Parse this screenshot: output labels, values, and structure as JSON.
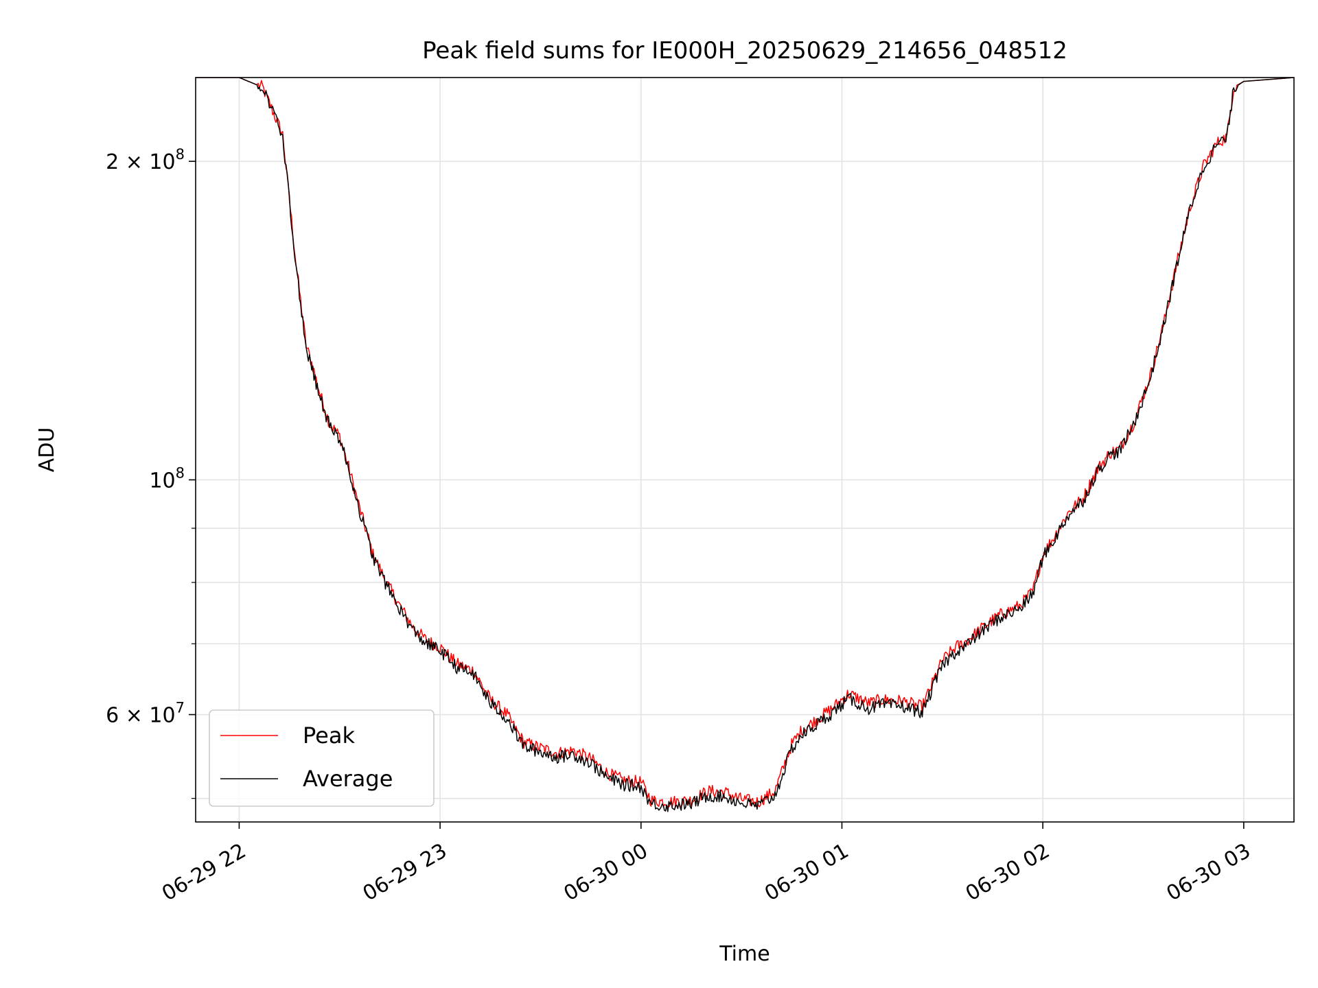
{
  "chart_data": {
    "type": "line",
    "title": "Peak field sums for IE000H_20250629_214656_048512",
    "xlabel": "Time",
    "ylabel": "ADU",
    "x_scale": "time",
    "y_scale": "log",
    "xlim": [
      "2025-06-29 21:47",
      "2025-06-30 03:15"
    ],
    "ylim": [
      47500000,
      240000000
    ],
    "x_ticks": [
      {
        "value": "2025-06-29 22:00",
        "label": "06-29 22"
      },
      {
        "value": "2025-06-29 23:00",
        "label": "06-29 23"
      },
      {
        "value": "2025-06-30 00:00",
        "label": "06-30 00"
      },
      {
        "value": "2025-06-30 01:00",
        "label": "06-30 01"
      },
      {
        "value": "2025-06-30 02:00",
        "label": "06-30 02"
      },
      {
        "value": "2025-06-30 03:00",
        "label": "06-30 03"
      }
    ],
    "y_major_ticks": [
      {
        "value": 60000000,
        "base": "6 × 10",
        "exp": "7"
      },
      {
        "value": 100000000,
        "base": "10",
        "exp": "8"
      },
      {
        "value": 200000000,
        "base": "2 × 10",
        "exp": "8"
      }
    ],
    "y_minor_ticks": [
      50000000,
      70000000,
      80000000,
      90000000
    ],
    "grid": true,
    "legend": "lower-left",
    "series": [
      {
        "name": "Peak",
        "color": "#ff0000",
        "x": [
          "2025-06-29 21:47",
          "2025-06-29 22:00",
          "2025-06-29 22:07",
          "2025-06-29 22:13",
          "2025-06-29 22:17",
          "2025-06-29 22:20",
          "2025-06-29 22:22",
          "2025-06-29 22:24",
          "2025-06-29 22:27",
          "2025-06-29 22:30",
          "2025-06-29 22:33",
          "2025-06-29 22:36",
          "2025-06-29 22:40",
          "2025-06-29 22:44",
          "2025-06-29 22:48",
          "2025-06-29 22:52",
          "2025-06-29 22:56",
          "2025-06-29 23:00",
          "2025-06-29 23:05",
          "2025-06-29 23:10",
          "2025-06-29 23:15",
          "2025-06-29 23:20",
          "2025-06-29 23:22",
          "2025-06-29 23:25",
          "2025-06-29 23:30",
          "2025-06-29 23:35",
          "2025-06-29 23:40",
          "2025-06-29 23:45",
          "2025-06-29 23:50",
          "2025-06-29 23:55",
          "2025-06-30 00:00",
          "2025-06-30 00:03",
          "2025-06-30 00:08",
          "2025-06-30 00:15",
          "2025-06-30 00:20",
          "2025-06-30 00:25",
          "2025-06-30 00:30",
          "2025-06-30 00:35",
          "2025-06-30 00:40",
          "2025-06-30 00:45",
          "2025-06-30 00:48",
          "2025-06-30 00:52",
          "2025-06-30 00:57",
          "2025-06-30 01:02",
          "2025-06-30 01:08",
          "2025-06-30 01:12",
          "2025-06-30 01:18",
          "2025-06-30 01:24",
          "2025-06-30 01:30",
          "2025-06-30 01:34",
          "2025-06-30 01:37",
          "2025-06-30 01:42",
          "2025-06-30 01:47",
          "2025-06-30 01:53",
          "2025-06-30 01:57",
          "2025-06-30 02:00",
          "2025-06-30 02:04",
          "2025-06-30 02:08",
          "2025-06-30 02:12",
          "2025-06-30 02:16",
          "2025-06-30 02:20",
          "2025-06-30 02:23",
          "2025-06-30 02:25",
          "2025-06-30 02:27",
          "2025-06-30 02:32",
          "2025-06-30 02:36",
          "2025-06-30 02:40",
          "2025-06-30 02:44",
          "2025-06-30 02:48",
          "2025-06-30 02:52",
          "2025-06-30 02:55",
          "2025-06-30 02:57",
          "2025-06-30 03:00",
          "2025-06-30 03:15"
        ],
        "values": [
          240000000,
          240000000,
          235000000,
          212000000,
          160000000,
          134000000,
          128000000,
          121000000,
          113000000,
          110000000,
          102000000,
          94000000,
          85000000,
          80000000,
          76000000,
          72500000,
          70500000,
          69500000,
          67000000,
          66000000,
          62000000,
          60000000,
          58500000,
          56500000,
          55800000,
          55200000,
          55500000,
          54500000,
          52800000,
          52000000,
          51800000,
          49800000,
          49600000,
          49800000,
          50800000,
          50700000,
          49900000,
          49600000,
          50800000,
          56200000,
          58000000,
          59200000,
          60800000,
          62800000,
          61500000,
          62000000,
          61800000,
          61000000,
          67500000,
          69500000,
          70300000,
          72500000,
          74500000,
          76000000,
          78500000,
          85000000,
          89000000,
          93500000,
          96000000,
          102000000,
          106000000,
          107000000,
          110000000,
          113000000,
          125000000,
          140000000,
          160000000,
          181000000,
          198000000,
          208000000,
          211000000,
          235000000,
          238000000,
          240000000
        ]
      },
      {
        "name": "Average",
        "color": "#000000",
        "x": [
          "2025-06-29 21:47",
          "2025-06-29 22:00",
          "2025-06-29 22:07",
          "2025-06-29 22:13",
          "2025-06-29 22:17",
          "2025-06-29 22:20",
          "2025-06-29 22:22",
          "2025-06-29 22:24",
          "2025-06-29 22:27",
          "2025-06-29 22:30",
          "2025-06-29 22:33",
          "2025-06-29 22:36",
          "2025-06-29 22:40",
          "2025-06-29 22:44",
          "2025-06-29 22:48",
          "2025-06-29 22:52",
          "2025-06-29 22:56",
          "2025-06-29 23:00",
          "2025-06-29 23:05",
          "2025-06-29 23:10",
          "2025-06-29 23:15",
          "2025-06-29 23:20",
          "2025-06-29 23:22",
          "2025-06-29 23:25",
          "2025-06-29 23:30",
          "2025-06-29 23:35",
          "2025-06-29 23:40",
          "2025-06-29 23:45",
          "2025-06-29 23:50",
          "2025-06-29 23:55",
          "2025-06-30 00:00",
          "2025-06-30 00:03",
          "2025-06-30 00:08",
          "2025-06-30 00:15",
          "2025-06-30 00:20",
          "2025-06-30 00:25",
          "2025-06-30 00:30",
          "2025-06-30 00:35",
          "2025-06-30 00:40",
          "2025-06-30 00:45",
          "2025-06-30 00:48",
          "2025-06-30 00:52",
          "2025-06-30 00:57",
          "2025-06-30 01:02",
          "2025-06-30 01:08",
          "2025-06-30 01:12",
          "2025-06-30 01:18",
          "2025-06-30 01:24",
          "2025-06-30 01:30",
          "2025-06-30 01:34",
          "2025-06-30 01:37",
          "2025-06-30 01:42",
          "2025-06-30 01:47",
          "2025-06-30 01:53",
          "2025-06-30 01:57",
          "2025-06-30 02:00",
          "2025-06-30 02:04",
          "2025-06-30 02:08",
          "2025-06-30 02:12",
          "2025-06-30 02:16",
          "2025-06-30 02:20",
          "2025-06-30 02:23",
          "2025-06-30 02:25",
          "2025-06-30 02:27",
          "2025-06-30 02:32",
          "2025-06-30 02:36",
          "2025-06-30 02:40",
          "2025-06-30 02:44",
          "2025-06-30 02:48",
          "2025-06-30 02:52",
          "2025-06-30 02:55",
          "2025-06-30 02:57",
          "2025-06-30 03:00",
          "2025-06-30 03:15"
        ],
        "values": [
          240000000,
          240000000,
          235000000,
          211000000,
          159000000,
          133000000,
          127000000,
          120000000,
          112500000,
          109500000,
          101500000,
          93500000,
          84500000,
          79500000,
          75500000,
          72000000,
          70000000,
          69000000,
          66500000,
          65500000,
          61500000,
          59500000,
          58000000,
          56000000,
          55300000,
          54700000,
          55000000,
          54000000,
          52300000,
          51500000,
          51300000,
          49400000,
          49200000,
          49400000,
          50300000,
          50200000,
          49500000,
          49200000,
          50300000,
          55700000,
          57400000,
          58600000,
          60200000,
          62100000,
          60800000,
          61300000,
          61100000,
          60300000,
          66800000,
          68800000,
          69700000,
          72000000,
          74000000,
          75500000,
          78000000,
          84500000,
          88500000,
          93000000,
          95500000,
          101500000,
          105500000,
          106500000,
          109500000,
          112500000,
          124500000,
          139500000,
          159500000,
          180500000,
          197500000,
          207500000,
          210500000,
          234500000,
          238000000,
          240000000
        ]
      }
    ]
  }
}
